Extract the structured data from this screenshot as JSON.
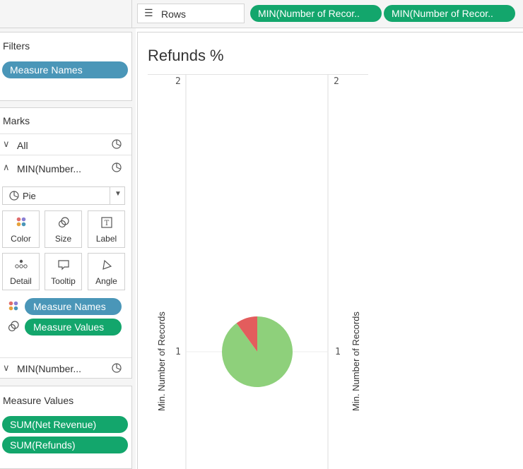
{
  "rows_shelf": {
    "label": "Rows",
    "pills": [
      "MIN(Number of Recor..",
      "MIN(Number of Recor.."
    ]
  },
  "filters": {
    "title": "Filters",
    "pills": [
      "Measure Names"
    ]
  },
  "marks": {
    "title": "Marks",
    "rows": [
      {
        "label": "All",
        "caret": "down"
      },
      {
        "label": "MIN(Number...",
        "caret": "up"
      }
    ],
    "mark_type": "Pie",
    "cards": [
      "Color",
      "Size",
      "Label",
      "Detail",
      "Tooltip",
      "Angle"
    ],
    "assigned": [
      {
        "icon": "color-dots-icon",
        "field": "Measure Names",
        "color": "#4a96b8"
      },
      {
        "icon": "size-icon",
        "field": "Measure Values",
        "color": "#13a66c"
      }
    ],
    "collapsed_row": {
      "label": "MIN(Number...",
      "caret": "down"
    }
  },
  "measure_values": {
    "title": "Measure Values",
    "pills": [
      "SUM(Net Revenue)",
      "SUM(Refunds)"
    ]
  },
  "worksheet": {
    "title": "Refunds %"
  },
  "chart_data": {
    "type": "pie",
    "title": "Refunds %",
    "ylabel": "Min. Number of Records",
    "ylim": [
      0.5,
      2
    ],
    "y_ticks": [
      "2",
      "1"
    ],
    "grid": true,
    "slices": [
      {
        "name": "SUM(Net Revenue)",
        "fraction": 0.9,
        "color": "#8ed07b"
      },
      {
        "name": "SUM(Refunds)",
        "fraction": 0.1,
        "color": "#e35d5d"
      }
    ],
    "pie_center_y": 1
  }
}
